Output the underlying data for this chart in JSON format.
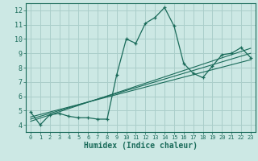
{
  "title": "",
  "xlabel": "Humidex (Indice chaleur)",
  "ylabel": "",
  "background_color": "#cce8e4",
  "grid_color": "#aaceca",
  "line_color": "#1a6b5a",
  "xlim": [
    -0.5,
    23.5
  ],
  "ylim": [
    3.5,
    12.5
  ],
  "xticks": [
    0,
    1,
    2,
    3,
    4,
    5,
    6,
    7,
    8,
    9,
    10,
    11,
    12,
    13,
    14,
    15,
    16,
    17,
    18,
    19,
    20,
    21,
    22,
    23
  ],
  "yticks": [
    4,
    5,
    6,
    7,
    8,
    9,
    10,
    11,
    12
  ],
  "main_x": [
    0,
    1,
    2,
    3,
    4,
    5,
    6,
    7,
    8,
    9,
    10,
    11,
    12,
    13,
    14,
    15,
    16,
    17,
    18,
    19,
    20,
    21,
    22,
    23
  ],
  "main_y": [
    4.9,
    4.0,
    4.7,
    4.8,
    4.6,
    4.5,
    4.5,
    4.4,
    4.4,
    7.5,
    10.0,
    9.7,
    11.1,
    11.5,
    12.2,
    10.9,
    8.3,
    7.6,
    7.3,
    8.1,
    8.9,
    9.0,
    9.4,
    8.7
  ],
  "reg_lines": [
    {
      "x": [
        0,
        23
      ],
      "y": [
        4.55,
        8.55
      ]
    },
    {
      "x": [
        0,
        23
      ],
      "y": [
        4.4,
        9.0
      ]
    },
    {
      "x": [
        0,
        23
      ],
      "y": [
        4.25,
        9.35
      ]
    }
  ],
  "xlabel_fontsize": 7,
  "tick_fontsize": 5,
  "marker_size": 3.5,
  "linewidth": 0.9
}
